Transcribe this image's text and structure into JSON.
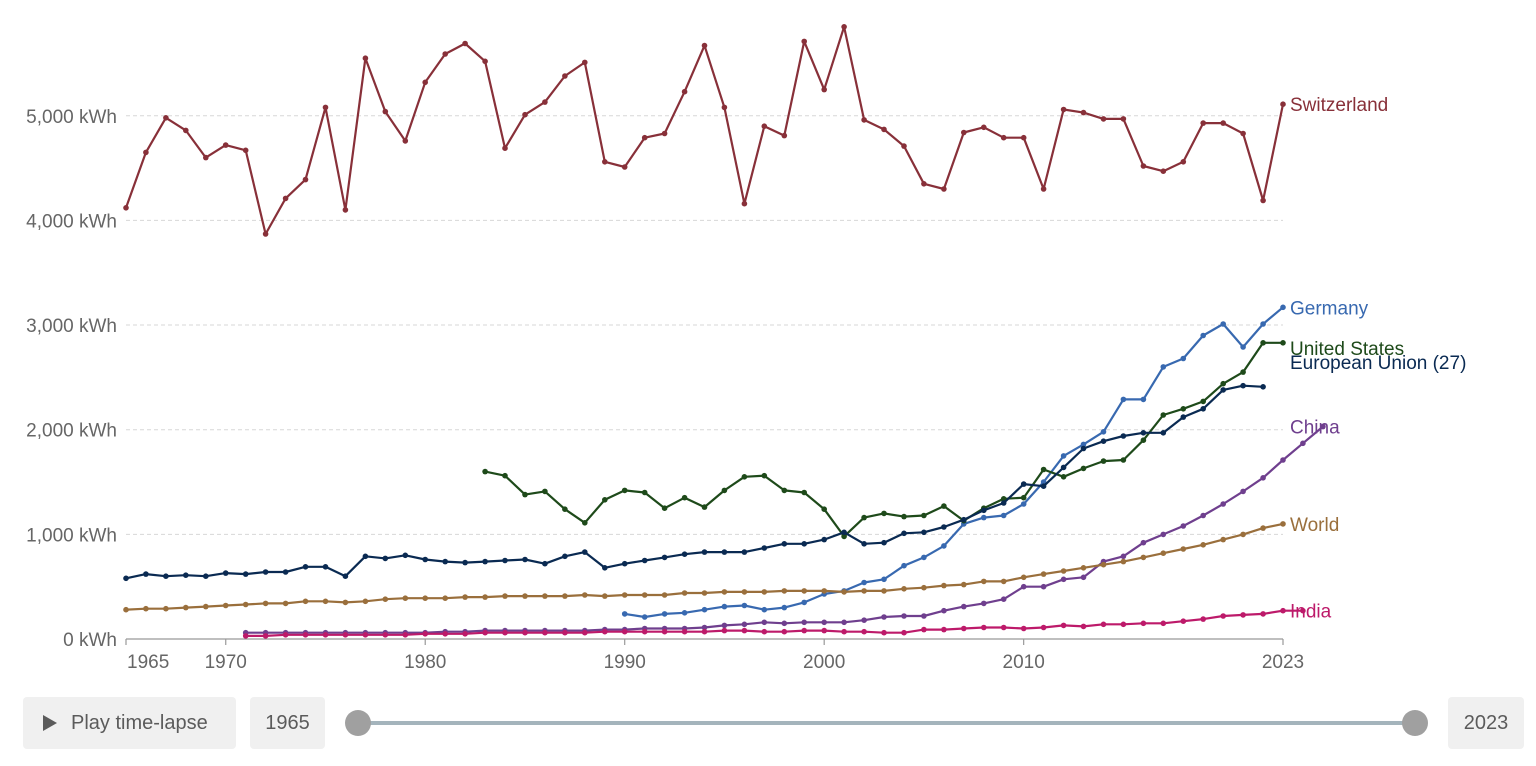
{
  "chart_data": {
    "type": "line",
    "x_ticks": [
      1965,
      1970,
      1980,
      1990,
      2000,
      2010,
      2023
    ],
    "y_ticks": [
      0,
      1000,
      2000,
      3000,
      4000,
      5000
    ],
    "y_tick_labels": [
      "0 kWh",
      "1,000 kWh",
      "2,000 kWh",
      "3,000 kWh",
      "4,000 kWh",
      "5,000 kWh"
    ],
    "x_tick_labels": [
      "1965",
      "1970",
      "1980",
      "1990",
      "2000",
      "2010",
      "2023"
    ],
    "xlim": [
      1965,
      2023
    ],
    "ylim": [
      0,
      5800
    ],
    "grid": "horizontal-dashed",
    "series": [
      {
        "name": "Switzerland",
        "color": "#883039",
        "start": 1965,
        "values": [
          4120,
          4650,
          4980,
          4860,
          4600,
          4720,
          4670,
          3870,
          4210,
          4390,
          5080,
          4100,
          5550,
          5040,
          4760,
          5320,
          5590,
          5690,
          5520,
          4690,
          5010,
          5130,
          5380,
          5510,
          4560,
          4510,
          4790,
          4830,
          5230,
          5670,
          5080,
          4160,
          4900,
          4810,
          5710,
          5250,
          5850,
          4960,
          4870,
          4710,
          4350,
          4300,
          4840,
          4890,
          4790,
          4790,
          4300,
          5060,
          5030,
          4970,
          4970,
          4520,
          4470,
          4560,
          4930,
          4930,
          4830,
          4190,
          5110
        ]
      },
      {
        "name": "Germany",
        "color": "#3869b0",
        "start": 1990,
        "values": [
          240,
          210,
          240,
          250,
          280,
          310,
          320,
          280,
          300,
          350,
          430,
          460,
          540,
          570,
          700,
          780,
          890,
          1100,
          1160,
          1180,
          1290,
          1500,
          1750,
          1860,
          1980,
          2290,
          2290,
          2600,
          2680,
          2900,
          3010,
          2790,
          3010,
          3170
        ]
      },
      {
        "name": "United States",
        "color": "#1e4a1a",
        "start": 1983,
        "values": [
          1600,
          1560,
          1380,
          1410,
          1240,
          1110,
          1330,
          1420,
          1400,
          1250,
          1350,
          1260,
          1420,
          1550,
          1560,
          1420,
          1400,
          1240,
          980,
          1160,
          1200,
          1170,
          1180,
          1270,
          1130,
          1250,
          1340,
          1350,
          1620,
          1550,
          1630,
          1700,
          1710,
          1900,
          2140,
          2200,
          2270,
          2440,
          2550,
          2830,
          2830
        ]
      },
      {
        "name": "European Union (27)",
        "color": "#0a2a52",
        "start": 1965,
        "values": [
          580,
          620,
          600,
          610,
          600,
          630,
          620,
          640,
          640,
          690,
          690,
          600,
          790,
          770,
          800,
          760,
          740,
          730,
          740,
          750,
          760,
          720,
          790,
          830,
          680,
          720,
          750,
          780,
          810,
          830,
          830,
          830,
          870,
          910,
          910,
          950,
          1020,
          910,
          920,
          1010,
          1020,
          1070,
          1140,
          1230,
          1300,
          1480,
          1460,
          1640,
          1820,
          1890,
          1940,
          1970,
          1970,
          2120,
          2200,
          2380,
          2420,
          2410
        ]
      },
      {
        "name": "China",
        "color": "#6f3f8e",
        "start": 1971,
        "values": [
          60,
          60,
          60,
          60,
          60,
          60,
          60,
          60,
          60,
          60,
          70,
          70,
          80,
          80,
          80,
          80,
          80,
          80,
          90,
          90,
          100,
          100,
          100,
          110,
          130,
          140,
          160,
          150,
          160,
          160,
          160,
          180,
          210,
          220,
          220,
          270,
          310,
          340,
          380,
          500,
          500,
          570,
          590,
          740,
          790,
          920,
          1000,
          1080,
          1180,
          1290,
          1410,
          1540,
          1710,
          1870,
          2030
        ]
      },
      {
        "name": "World",
        "color": "#9a6f3c",
        "start": 1965,
        "values": [
          280,
          290,
          290,
          300,
          310,
          320,
          330,
          340,
          340,
          360,
          360,
          350,
          360,
          380,
          390,
          390,
          390,
          400,
          400,
          410,
          410,
          410,
          410,
          420,
          410,
          420,
          420,
          420,
          440,
          440,
          450,
          450,
          450,
          460,
          460,
          460,
          450,
          460,
          460,
          480,
          490,
          510,
          520,
          550,
          550,
          590,
          620,
          650,
          680,
          710,
          740,
          780,
          820,
          860,
          900,
          950,
          1000,
          1060,
          1100
        ]
      },
      {
        "name": "India",
        "color": "#bd1a6a",
        "start": 1971,
        "values": [
          30,
          30,
          40,
          40,
          40,
          40,
          40,
          40,
          40,
          50,
          50,
          50,
          60,
          60,
          60,
          60,
          60,
          60,
          70,
          70,
          70,
          70,
          70,
          70,
          80,
          80,
          70,
          70,
          80,
          80,
          70,
          70,
          60,
          60,
          90,
          90,
          100,
          110,
          110,
          100,
          110,
          130,
          120,
          140,
          140,
          150,
          150,
          170,
          190,
          220,
          230,
          240,
          270,
          270
        ]
      }
    ]
  },
  "controls": {
    "play_label": "Play time-lapse",
    "start_year": "1965",
    "end_year": "2023"
  }
}
